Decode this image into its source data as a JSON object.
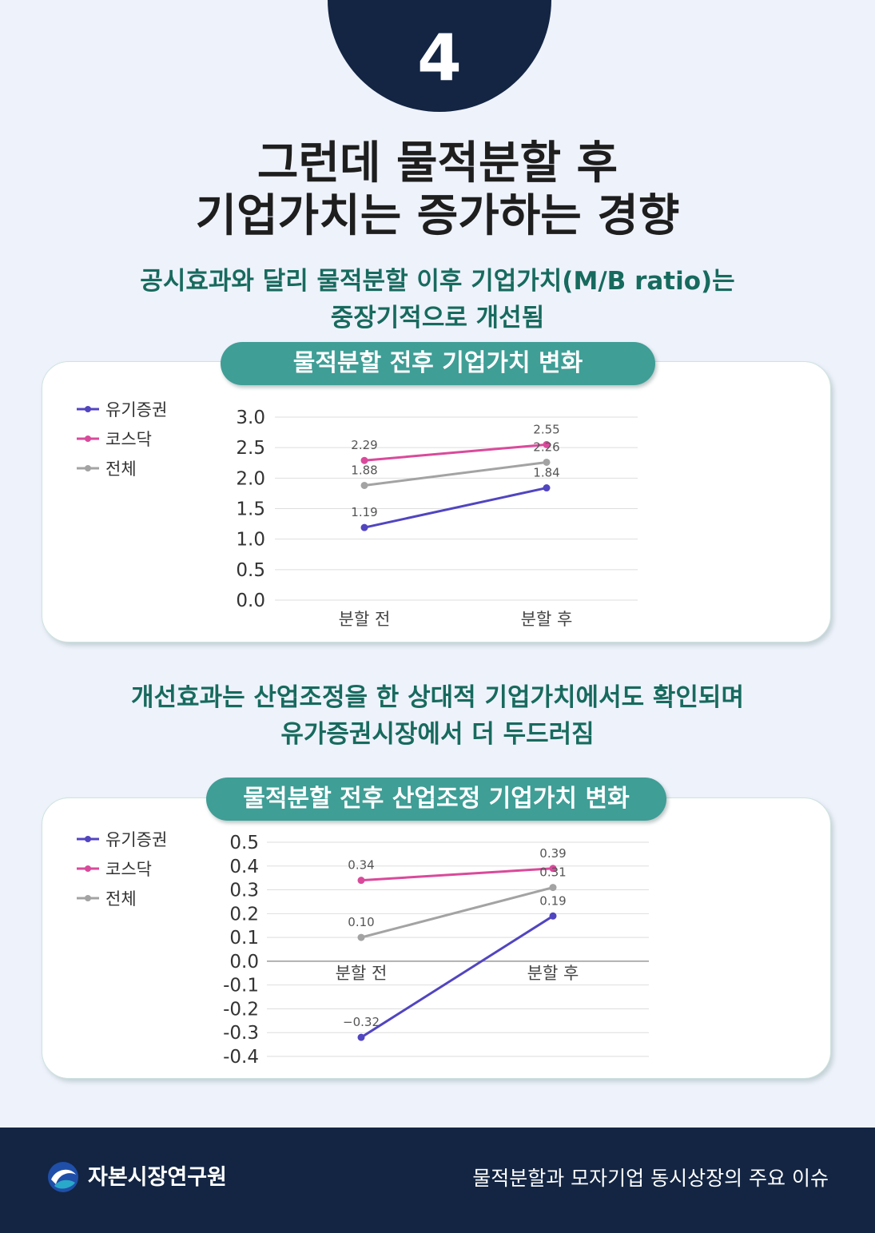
{
  "page": {
    "badge_number": "4",
    "title_line1": "그런데 물적분할 후",
    "title_line2": "기업가치는 증가하는 경향",
    "subtitle1_line1": "공시효과와 달리 물적분할 이후 기업가치(M/B ratio)는",
    "subtitle1_line2": "중장기적으로 개선됨",
    "subtitle2_line1": "개선효과는 산업조정을 한 상대적 기업가치에서도 확인되며",
    "subtitle2_line2": "유가증권시장에서 더 두드러짐"
  },
  "footer": {
    "org_name": "자본시장연구원",
    "doc_title": "물적분할과 모자기업 동시상장의 주요 이슈"
  },
  "chart_data": [
    {
      "type": "line",
      "title": "물적분할 전후 기업가치 변화",
      "categories": [
        "분할 전",
        "분할 후"
      ],
      "series": [
        {
          "name": "유기증권",
          "color": "#5145c0",
          "values": [
            1.19,
            1.84
          ],
          "labels": [
            "1.19",
            "1.84"
          ]
        },
        {
          "name": "코스닥",
          "color": "#d94a9b",
          "values": [
            2.29,
            2.55
          ],
          "labels": [
            "2.29",
            "2.55"
          ]
        },
        {
          "name": "전체",
          "color": "#a3a3a3",
          "values": [
            1.88,
            2.26
          ],
          "labels": [
            "1.88",
            "2.26"
          ]
        }
      ],
      "ylim": [
        0,
        3.0
      ],
      "yticks": [
        3.0,
        2.5,
        2.0,
        1.5,
        1.0,
        0.5,
        0.0
      ],
      "ytick_labels": [
        "3.0",
        "2.5",
        "2.0",
        "1.5",
        "1.0",
        "0.5",
        "0.0"
      ],
      "grid": true,
      "legend": "top-left"
    },
    {
      "type": "line",
      "title": "물적분할 전후 산업조정 기업가치 변화",
      "categories": [
        "분할 전",
        "분할 후"
      ],
      "series": [
        {
          "name": "유기증권",
          "color": "#5145c0",
          "values": [
            -0.32,
            0.19
          ],
          "labels": [
            "−0.32",
            "0.19"
          ]
        },
        {
          "name": "코스닥",
          "color": "#d94a9b",
          "values": [
            0.34,
            0.39
          ],
          "labels": [
            "0.34",
            "0.39"
          ]
        },
        {
          "name": "전체",
          "color": "#a3a3a3",
          "values": [
            0.1,
            0.31
          ],
          "labels": [
            "0.10",
            "0.31"
          ]
        }
      ],
      "ylim": [
        -0.4,
        0.5
      ],
      "yticks": [
        0.5,
        0.4,
        0.3,
        0.2,
        0.1,
        0.0,
        -0.1,
        -0.2,
        -0.3,
        -0.4
      ],
      "ytick_labels": [
        "0.5",
        "0.4",
        "0.3",
        "0.2",
        "0.1",
        "0.0",
        "-0.1",
        "-0.2",
        "-0.3",
        "-0.4"
      ],
      "grid": true,
      "legend": "top-left"
    }
  ]
}
